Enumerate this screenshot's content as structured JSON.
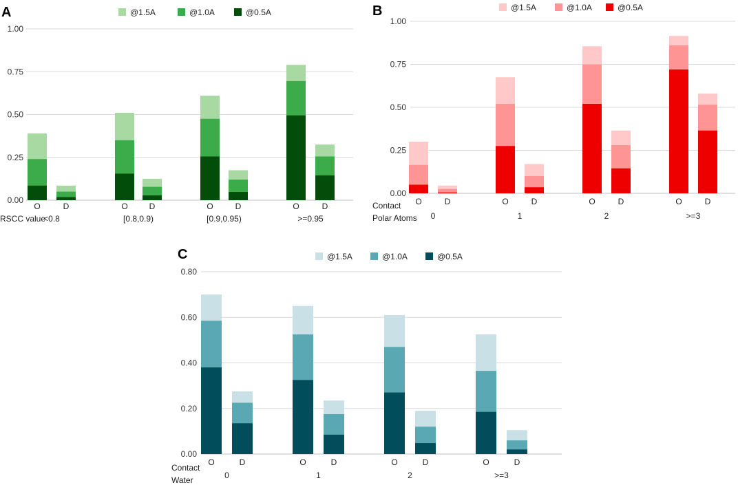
{
  "chart_data": [
    {
      "panel": "A",
      "type": "bar",
      "stacked": true,
      "legend": [
        "@1.5A",
        "@1.0A",
        "@0.5A"
      ],
      "colors": [
        "#a8d9a3",
        "#3bac49",
        "#034d0b"
      ],
      "ylim": [
        0,
        1.0
      ],
      "yticks": [
        "0.00",
        "0.25",
        "0.50",
        "0.75",
        "1.00"
      ],
      "ytick_values": [
        0,
        0.25,
        0.5,
        0.75,
        1.0
      ],
      "xlabel_lines": [
        "RSCC value"
      ],
      "groups": [
        {
          "label": "<0.8",
          "bars": [
            {
              "label": "O",
              "cumulative": [
                0.39,
                0.24,
                0.085
              ]
            },
            {
              "label": "D",
              "cumulative": [
                0.085,
                0.05,
                0.018
              ]
            }
          ]
        },
        {
          "label": "[0.8,0.9)",
          "bars": [
            {
              "label": "O",
              "cumulative": [
                0.51,
                0.35,
                0.155
              ]
            },
            {
              "label": "D",
              "cumulative": [
                0.125,
                0.078,
                0.028
              ]
            }
          ]
        },
        {
          "label": "[0.9,0.95)",
          "bars": [
            {
              "label": "O",
              "cumulative": [
                0.61,
                0.475,
                0.255
              ]
            },
            {
              "label": "D",
              "cumulative": [
                0.175,
                0.12,
                0.048
              ]
            }
          ]
        },
        {
          "label": ">=0.95",
          "bars": [
            {
              "label": "O",
              "cumulative": [
                0.79,
                0.695,
                0.495
              ]
            },
            {
              "label": "D",
              "cumulative": [
                0.325,
                0.255,
                0.145
              ]
            }
          ]
        }
      ]
    },
    {
      "panel": "B",
      "type": "bar",
      "stacked": true,
      "legend": [
        "@1.5A",
        "@1.0A",
        "@0.5A"
      ],
      "colors": [
        "#ffc9c9",
        "#ff9494",
        "#ee0000"
      ],
      "ylim": [
        0,
        1.0
      ],
      "yticks": [
        "0.00",
        "0.25",
        "0.50",
        "0.75",
        "1.00"
      ],
      "ytick_values": [
        0,
        0.25,
        0.5,
        0.75,
        1.0
      ],
      "xlabel_lines": [
        "Contact",
        "Polar Atoms"
      ],
      "groups": [
        {
          "label": "0",
          "bars": [
            {
              "label": "O",
              "cumulative": [
                0.3,
                0.165,
                0.05
              ]
            },
            {
              "label": "D",
              "cumulative": [
                0.045,
                0.025,
                0.005
              ]
            }
          ]
        },
        {
          "label": "1",
          "bars": [
            {
              "label": "O",
              "cumulative": [
                0.675,
                0.52,
                0.275
              ]
            },
            {
              "label": "D",
              "cumulative": [
                0.17,
                0.1,
                0.035
              ]
            }
          ]
        },
        {
          "label": "2",
          "bars": [
            {
              "label": "O",
              "cumulative": [
                0.855,
                0.75,
                0.52
              ]
            },
            {
              "label": "D",
              "cumulative": [
                0.365,
                0.28,
                0.145
              ]
            }
          ]
        },
        {
          "label": ">=3",
          "bars": [
            {
              "label": "O",
              "cumulative": [
                0.915,
                0.86,
                0.72
              ]
            },
            {
              "label": "D",
              "cumulative": [
                0.58,
                0.515,
                0.365
              ]
            }
          ]
        }
      ]
    },
    {
      "panel": "C",
      "type": "bar",
      "stacked": true,
      "legend": [
        "@1.5A",
        "@1.0A",
        "@0.5A"
      ],
      "colors": [
        "#c9e1e6",
        "#5aa8b3",
        "#014d5c"
      ],
      "ylim": [
        0,
        0.8
      ],
      "yticks": [
        "0.00",
        "0.20",
        "0.40",
        "0.60",
        "0.80"
      ],
      "ytick_values": [
        0,
        0.2,
        0.4,
        0.6,
        0.8
      ],
      "xlabel_lines": [
        "Contact",
        "Water"
      ],
      "groups": [
        {
          "label": "0",
          "bars": [
            {
              "label": "O",
              "cumulative": [
                0.7,
                0.585,
                0.38
              ]
            },
            {
              "label": "D",
              "cumulative": [
                0.275,
                0.225,
                0.135
              ]
            }
          ]
        },
        {
          "label": "1",
          "bars": [
            {
              "label": "O",
              "cumulative": [
                0.65,
                0.525,
                0.325
              ]
            },
            {
              "label": "D",
              "cumulative": [
                0.235,
                0.175,
                0.085
              ]
            }
          ]
        },
        {
          "label": "2",
          "bars": [
            {
              "label": "O",
              "cumulative": [
                0.61,
                0.47,
                0.27
              ]
            },
            {
              "label": "D",
              "cumulative": [
                0.19,
                0.12,
                0.048
              ]
            }
          ]
        },
        {
          "label": ">=3",
          "bars": [
            {
              "label": "O",
              "cumulative": [
                0.525,
                0.365,
                0.185
              ]
            },
            {
              "label": "D",
              "cumulative": [
                0.105,
                0.06,
                0.02
              ]
            }
          ]
        }
      ]
    }
  ]
}
